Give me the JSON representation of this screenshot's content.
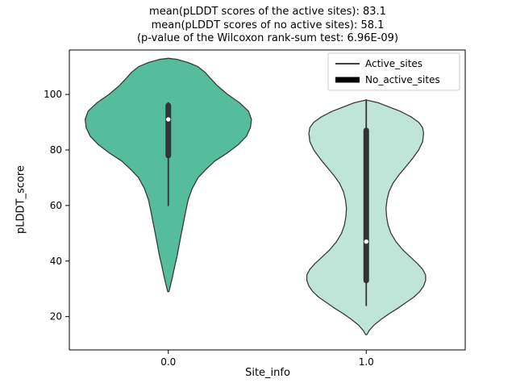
{
  "figure": {
    "title_lines": [
      "mean(pLDDT scores of the active sites): 83.1",
      "mean(pLDDT scores of no active sites): 58.1",
      "(p-value of the Wilcoxon rank-sum test: 6.96E-09)"
    ]
  },
  "chart_data": {
    "type": "violin",
    "title": "mean(pLDDT scores of the active sites): 83.1 / mean(pLDDT scores of no active sites): 58.1 / (p-value of the Wilcoxon rank-sum test: 6.96E-09)",
    "xlabel": "Site_info",
    "ylabel": "pLDDT_score",
    "categories": [
      "0.0",
      "1.0"
    ],
    "x_positions": [
      0,
      1
    ],
    "xlim": [
      -0.5,
      1.5
    ],
    "ylim": [
      8,
      116
    ],
    "yticks": [
      20,
      40,
      60,
      80,
      100
    ],
    "grid": false,
    "legend_position": "upper right",
    "box_color": "#333333",
    "median_dot_color": "#ffffff",
    "mean_active_sites": 83.1,
    "mean_no_active_sites": 58.1,
    "wilcoxon_p_value": "6.96E-09",
    "legend": [
      {
        "label": "Active_sites",
        "line_width": 1.5
      },
      {
        "label": "No_active_sites",
        "line_width": 7
      }
    ],
    "violins": [
      {
        "name": "Active_sites",
        "category": "0.0",
        "fill": "#56bd9c",
        "edge": "#3a3a3a",
        "box": {
          "whisker_low": 60,
          "q1": 78,
          "median": 91,
          "q3": 96,
          "whisker_high": 97
        },
        "profile": [
          [
            29,
            0.003
          ],
          [
            31,
            0.01
          ],
          [
            34,
            0.02
          ],
          [
            38,
            0.032
          ],
          [
            42,
            0.045
          ],
          [
            46,
            0.055
          ],
          [
            50,
            0.066
          ],
          [
            54,
            0.077
          ],
          [
            58,
            0.088
          ],
          [
            62,
            0.1
          ],
          [
            66,
            0.12
          ],
          [
            70,
            0.15
          ],
          [
            73,
            0.19
          ],
          [
            76,
            0.235
          ],
          [
            79,
            0.3
          ],
          [
            82,
            0.355
          ],
          [
            85,
            0.395
          ],
          [
            88,
            0.415
          ],
          [
            91,
            0.42
          ],
          [
            94,
            0.405
          ],
          [
            97,
            0.36
          ],
          [
            100,
            0.3
          ],
          [
            103,
            0.25
          ],
          [
            106,
            0.21
          ],
          [
            108,
            0.185
          ],
          [
            110,
            0.15
          ],
          [
            111.5,
            0.1
          ],
          [
            112.6,
            0.045
          ],
          [
            113,
            0.0
          ]
        ]
      },
      {
        "name": "No_active_sites",
        "category": "1.0",
        "fill": "#bfe5d9",
        "edge": "#3a3a3a",
        "box": {
          "whisker_low": 24,
          "q1": 33,
          "median": 47,
          "q3": 87,
          "whisker_high": 98
        },
        "profile": [
          [
            13.5,
            0.003
          ],
          [
            15,
            0.015
          ],
          [
            17,
            0.04
          ],
          [
            19,
            0.075
          ],
          [
            21,
            0.115
          ],
          [
            23,
            0.16
          ],
          [
            25,
            0.2
          ],
          [
            27,
            0.24
          ],
          [
            29,
            0.27
          ],
          [
            31,
            0.29
          ],
          [
            33,
            0.3
          ],
          [
            35,
            0.3
          ],
          [
            37,
            0.285
          ],
          [
            39,
            0.26
          ],
          [
            41,
            0.23
          ],
          [
            44,
            0.185
          ],
          [
            47,
            0.15
          ],
          [
            50,
            0.125
          ],
          [
            53,
            0.11
          ],
          [
            56,
            0.103
          ],
          [
            59,
            0.1
          ],
          [
            62,
            0.105
          ],
          [
            65,
            0.115
          ],
          [
            68,
            0.135
          ],
          [
            71,
            0.165
          ],
          [
            74,
            0.2
          ],
          [
            77,
            0.235
          ],
          [
            80,
            0.265
          ],
          [
            83,
            0.285
          ],
          [
            86,
            0.29
          ],
          [
            88,
            0.285
          ],
          [
            90,
            0.265
          ],
          [
            92,
            0.225
          ],
          [
            94,
            0.17
          ],
          [
            95.5,
            0.115
          ],
          [
            97,
            0.06
          ],
          [
            98,
            0.0
          ]
        ]
      }
    ]
  }
}
